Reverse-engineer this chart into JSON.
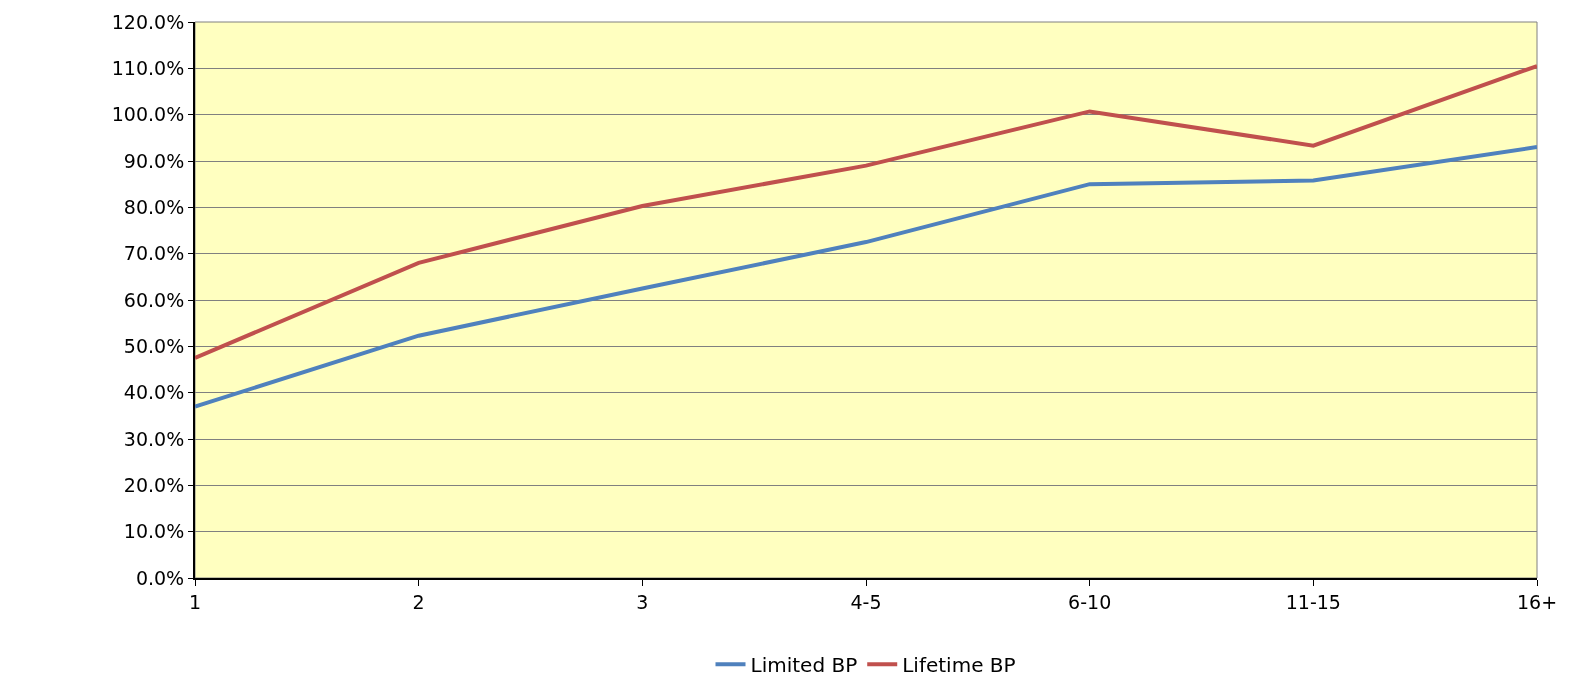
{
  "chart_data": {
    "type": "line",
    "categories": [
      "1",
      "2",
      "3",
      "4-5",
      "6-10",
      "11-15",
      "16+"
    ],
    "series": [
      {
        "name": "Limited BP",
        "color": "#4f81bd",
        "values": [
          37,
          52.3,
          62.5,
          72.5,
          85,
          85.8,
          93
        ]
      },
      {
        "name": "Lifetime BP",
        "color": "#c0504d",
        "values": [
          47.5,
          68,
          80.3,
          89,
          100.7,
          93.3,
          110.5
        ]
      }
    ],
    "ylim": [
      0,
      120
    ],
    "yticks": [
      {
        "value": 0,
        "label": "0.0%"
      },
      {
        "value": 10,
        "label": "10.0%"
      },
      {
        "value": 20,
        "label": "20.0%"
      },
      {
        "value": 30,
        "label": "30.0%"
      },
      {
        "value": 40,
        "label": "40.0%"
      },
      {
        "value": 50,
        "label": "50.0%"
      },
      {
        "value": 60,
        "label": "60.0%"
      },
      {
        "value": 70,
        "label": "70.0%"
      },
      {
        "value": 80,
        "label": "80.0%"
      },
      {
        "value": 90,
        "label": "90.0%"
      },
      {
        "value": 100,
        "label": "100.0%"
      },
      {
        "value": 110,
        "label": "110.0%"
      },
      {
        "value": 120,
        "label": "120.0%"
      }
    ],
    "grid": "y",
    "legend": "bottom",
    "marker": "none",
    "line_style": "solid"
  }
}
